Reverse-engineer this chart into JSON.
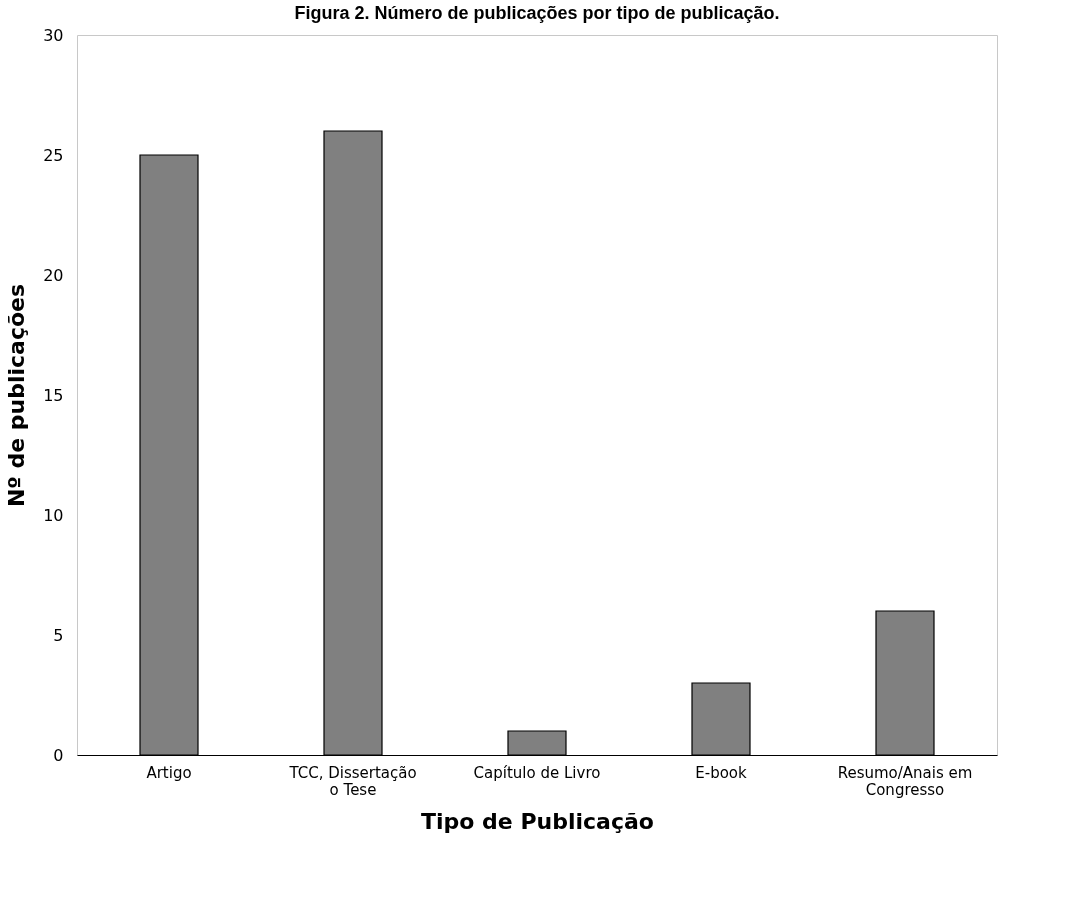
{
  "chart_data": {
    "type": "bar",
    "title": "Figura 2. Número de publicações por tipo de publicação.",
    "xlabel": "Tipo de Publicação",
    "ylabel": "Nº de publicações",
    "categories": [
      "Artigo",
      "TCC, Dissertação o Tese",
      "Capítulo de Livro",
      "E-book",
      "Resumo/Anais em Congresso"
    ],
    "values": [
      25,
      26,
      1,
      3,
      6
    ],
    "color": "#808080",
    "ylim": [
      0,
      30
    ],
    "yticks": [
      0,
      5,
      10,
      15,
      20,
      25,
      30
    ],
    "grid": false
  }
}
